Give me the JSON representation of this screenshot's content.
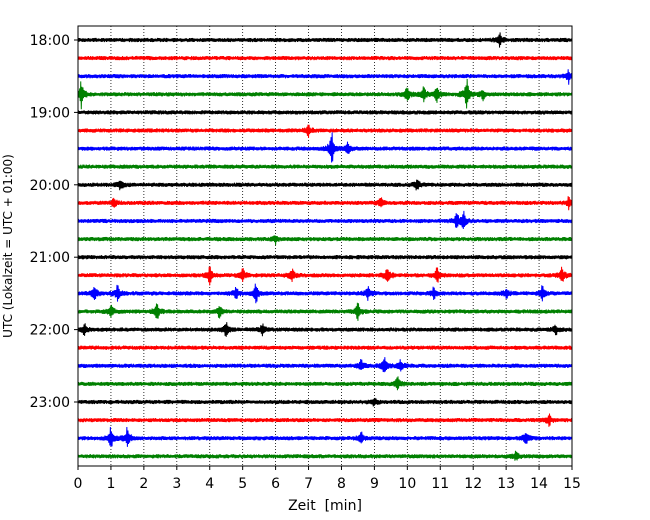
{
  "chart_data": {
    "type": "line",
    "title": "",
    "xlabel": "Zeit  [min]",
    "ylabel": "UTC (Lokalzeit = UTC + 01:00)",
    "xlim": [
      0,
      15
    ],
    "x_ticks": [
      "0",
      "1",
      "2",
      "3",
      "4",
      "5",
      "6",
      "7",
      "8",
      "9",
      "10",
      "11",
      "12",
      "13",
      "14",
      "15"
    ],
    "y_tick_labels": [
      "18:00",
      "19:00",
      "20:00",
      "21:00",
      "22:00",
      "23:00"
    ],
    "grid": "vertical-dotted",
    "trace_interval_minutes": 15,
    "trace_colors": [
      "#000000",
      "#ff0000",
      "#0000ff",
      "#008000"
    ],
    "traces": [
      {
        "start": "18:00",
        "color": "#000000",
        "events": [
          [
            12.8,
            5
          ]
        ]
      },
      {
        "start": "18:15",
        "color": "#ff0000",
        "events": []
      },
      {
        "start": "18:30",
        "color": "#0000ff",
        "events": [
          [
            14.9,
            5
          ]
        ]
      },
      {
        "start": "18:45",
        "color": "#008000",
        "events": [
          [
            0.1,
            10
          ],
          [
            10.0,
            6
          ],
          [
            10.5,
            5
          ],
          [
            10.9,
            6
          ],
          [
            11.8,
            12
          ],
          [
            12.3,
            4
          ]
        ]
      },
      {
        "start": "19:00",
        "color": "#000000",
        "events": []
      },
      {
        "start": "19:15",
        "color": "#ff0000",
        "events": [
          [
            7.0,
            4
          ]
        ]
      },
      {
        "start": "19:30",
        "color": "#0000ff",
        "events": [
          [
            7.7,
            13
          ],
          [
            8.2,
            4
          ]
        ]
      },
      {
        "start": "19:45",
        "color": "#008000",
        "events": []
      },
      {
        "start": "20:00",
        "color": "#000000",
        "events": [
          [
            1.3,
            4
          ],
          [
            10.3,
            4
          ]
        ]
      },
      {
        "start": "20:15",
        "color": "#ff0000",
        "events": [
          [
            1.1,
            4
          ],
          [
            9.2,
            4
          ],
          [
            14.9,
            4
          ]
        ]
      },
      {
        "start": "20:30",
        "color": "#0000ff",
        "events": [
          [
            11.5,
            5
          ],
          [
            11.7,
            7
          ]
        ]
      },
      {
        "start": "20:45",
        "color": "#008000",
        "events": [
          [
            6.0,
            3
          ]
        ]
      },
      {
        "start": "21:00",
        "color": "#000000",
        "events": []
      },
      {
        "start": "21:15",
        "color": "#ff0000",
        "events": [
          [
            4.0,
            6
          ],
          [
            5.0,
            5
          ],
          [
            6.5,
            5
          ],
          [
            9.4,
            7
          ],
          [
            10.9,
            6
          ],
          [
            14.7,
            6
          ]
        ]
      },
      {
        "start": "21:30",
        "color": "#0000ff",
        "events": [
          [
            0.5,
            6
          ],
          [
            1.2,
            6
          ],
          [
            4.8,
            5
          ],
          [
            5.4,
            7
          ],
          [
            8.8,
            5
          ],
          [
            10.8,
            4
          ],
          [
            13.0,
            4
          ],
          [
            14.1,
            5
          ]
        ]
      },
      {
        "start": "21:45",
        "color": "#008000",
        "events": [
          [
            1.0,
            6
          ],
          [
            2.4,
            6
          ],
          [
            4.3,
            5
          ],
          [
            8.5,
            6
          ]
        ]
      },
      {
        "start": "22:00",
        "color": "#000000",
        "events": [
          [
            0.2,
            4
          ],
          [
            4.5,
            5
          ],
          [
            5.6,
            4
          ],
          [
            14.5,
            4
          ]
        ]
      },
      {
        "start": "22:15",
        "color": "#ff0000",
        "events": []
      },
      {
        "start": "22:30",
        "color": "#0000ff",
        "events": [
          [
            8.6,
            4
          ],
          [
            9.3,
            6
          ],
          [
            9.8,
            4
          ]
        ]
      },
      {
        "start": "22:45",
        "color": "#008000",
        "events": [
          [
            9.7,
            5
          ]
        ]
      },
      {
        "start": "23:00",
        "color": "#000000",
        "events": [
          [
            9.0,
            3
          ]
        ]
      },
      {
        "start": "23:15",
        "color": "#ff0000",
        "events": [
          [
            14.3,
            4
          ]
        ]
      },
      {
        "start": "23:30",
        "color": "#0000ff",
        "events": [
          [
            1.0,
            8
          ],
          [
            1.5,
            8
          ],
          [
            8.6,
            4
          ],
          [
            13.6,
            5
          ]
        ]
      },
      {
        "start": "23:45",
        "color": "#008000",
        "events": [
          [
            13.3,
            3
          ]
        ]
      }
    ]
  }
}
